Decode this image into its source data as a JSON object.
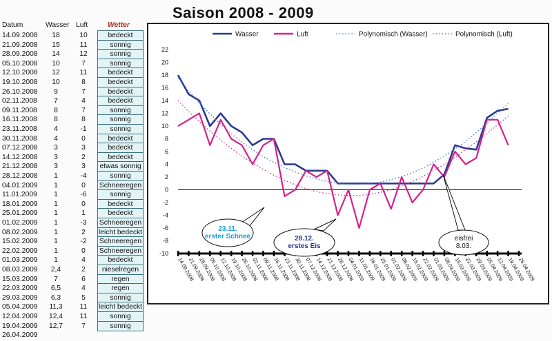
{
  "title": "Saison 2008  -  2009",
  "table": {
    "headers": {
      "date": "Datum",
      "water": "Wasser",
      "air": "Luft",
      "weather": "Wetter"
    },
    "rows": [
      {
        "date": "14.09.2008",
        "water": "18",
        "air": "10",
        "weather": "bedeckt"
      },
      {
        "date": "21.09.2008",
        "water": "15",
        "air": "11",
        "weather": "sonnig"
      },
      {
        "date": "28.09.2008",
        "water": "14",
        "air": "12",
        "weather": "sonnig"
      },
      {
        "date": "05.10.2008",
        "water": "10",
        "air": "7",
        "weather": "sonnig"
      },
      {
        "date": "12.10.2008",
        "water": "12",
        "air": "11",
        "weather": "bedeckt"
      },
      {
        "date": "19.10.2008",
        "water": "10",
        "air": "8",
        "weather": "bedeckt"
      },
      {
        "date": "26.10.2008",
        "water": "9",
        "air": "7",
        "weather": "bedeckt"
      },
      {
        "date": "02.11.2008",
        "water": "7",
        "air": "4",
        "weather": "bedeckt"
      },
      {
        "date": "09.11.2008",
        "water": "8",
        "air": "7",
        "weather": "sonnig"
      },
      {
        "date": "16.11.2008",
        "water": "8",
        "air": "8",
        "weather": "sonnig"
      },
      {
        "date": "23.11.2008",
        "water": "4",
        "air": "-1",
        "weather": "sonnig"
      },
      {
        "date": "30.11.2008",
        "water": "4",
        "air": "0",
        "weather": "bedeckt"
      },
      {
        "date": "07.12.2008",
        "water": "3",
        "air": "3",
        "weather": "bedeckt"
      },
      {
        "date": "14.12.2008",
        "water": "3",
        "air": "2",
        "weather": "bedeckt"
      },
      {
        "date": "21.12.2008",
        "water": "3",
        "air": "3",
        "weather": "etwas sonnig"
      },
      {
        "date": "28.12.2008",
        "water": "1",
        "air": "-4",
        "weather": "sonnig"
      },
      {
        "date": "04.01.2009",
        "water": "1",
        "air": "0",
        "weather": "Schneeregen"
      },
      {
        "date": "11.01.2009",
        "water": "1",
        "air": "-6",
        "weather": "sonnig"
      },
      {
        "date": "18.01.2009",
        "water": "1",
        "air": "0",
        "weather": "bedeckt"
      },
      {
        "date": "25.01.2009",
        "water": "1",
        "air": "1",
        "weather": "bedeckt"
      },
      {
        "date": "01.02.2009",
        "water": "1",
        "air": "-3",
        "weather": "Schneeregen"
      },
      {
        "date": "08.02.2009",
        "water": "1",
        "air": "2",
        "weather": "leicht bedeckt"
      },
      {
        "date": "15.02.2009",
        "water": "1",
        "air": "-2",
        "weather": "Schneeregen"
      },
      {
        "date": "22.02.2009",
        "water": "1",
        "air": "0",
        "weather": "Schneeregen"
      },
      {
        "date": "01.03.2009",
        "water": "1",
        "air": "4",
        "weather": "bedeckt"
      },
      {
        "date": "08.03.2009",
        "water": "2,4",
        "air": "2",
        "weather": "nieselregen"
      },
      {
        "date": "15.03.2009",
        "water": "7",
        "air": "6",
        "weather": "regen"
      },
      {
        "date": "22.03.2009",
        "water": "6,5",
        "air": "4",
        "weather": "regen"
      },
      {
        "date": "29.03.2009",
        "water": "6,3",
        "air": "5",
        "weather": "sonnig"
      },
      {
        "date": "05.04.2009",
        "water": "11,3",
        "air": "11",
        "weather": "leicht bedeckt"
      },
      {
        "date": "12.04.2009",
        "water": "12,4",
        "air": "11",
        "weather": "sonnig"
      },
      {
        "date": "19.04.2009",
        "water": "12,7",
        "air": "7",
        "weather": "sonnig"
      },
      {
        "date": "26.04.2009",
        "water": "",
        "air": "",
        "weather": ""
      }
    ]
  },
  "chart_data": {
    "type": "line",
    "title": "",
    "xlabel": "",
    "ylabel": "",
    "ylim": [
      -10,
      22
    ],
    "yticks": [
      -10,
      -8,
      -6,
      -4,
      -2,
      0,
      2,
      4,
      6,
      8,
      10,
      12,
      14,
      16,
      18,
      20,
      22
    ],
    "categories": [
      "14.09.2008",
      "21.09.2008",
      "28.09.2008",
      "05.10.2008",
      "12.10.2008",
      "19.10.2008",
      "26.10.2008",
      "02.11.2008",
      "09.11.2008",
      "16.11.2008",
      "23.11.2008",
      "30.11.2008",
      "07.12.2008",
      "14.12.2008",
      "21.12.2008",
      "28.12.2008",
      "04.01.2009",
      "11.01.2009",
      "18.01.2009",
      "25.01.2009",
      "01.02.2009",
      "08.02.2009",
      "15.02.2009",
      "22.02.2009",
      "01.03.2009",
      "08.03.2009",
      "15.03.2009",
      "22.03.2009",
      "29.03.2009",
      "05.04.2009",
      "12.04.2009",
      "19.04.2009",
      "26.04.2009"
    ],
    "series": [
      {
        "name": "Wasser",
        "color": "#2b3a8f",
        "style": "solid",
        "values": [
          18,
          15,
          14,
          10,
          12,
          10,
          9,
          7,
          8,
          8,
          4,
          4,
          3,
          3,
          3,
          1,
          1,
          1,
          1,
          1,
          1,
          1,
          1,
          1,
          1,
          2.4,
          7,
          6.5,
          6.3,
          11.3,
          12.4,
          12.7,
          null
        ]
      },
      {
        "name": "Luft",
        "color": "#d6208a",
        "style": "solid",
        "values": [
          10,
          11,
          12,
          7,
          11,
          8,
          7,
          4,
          7,
          8,
          -1,
          0,
          3,
          2,
          3,
          -4,
          0,
          -6,
          0,
          1,
          -3,
          2,
          -2,
          0,
          4,
          2,
          6,
          4,
          5,
          11,
          11,
          7,
          null
        ]
      },
      {
        "name": "Polynomisch (Wasser)",
        "color": "#3d6fd6",
        "style": "dotted",
        "values": [
          17.6,
          15.5,
          13.6,
          11.9,
          10.3,
          8.8,
          7.5,
          6.3,
          5.2,
          4.3,
          3.5,
          2.8,
          2.2,
          1.7,
          1.3,
          1.0,
          0.9,
          0.9,
          1.0,
          1.2,
          1.6,
          2.1,
          2.7,
          3.4,
          4.3,
          5.3,
          6.4,
          7.6,
          9.0,
          10.4,
          12.0,
          13.6,
          null
        ]
      },
      {
        "name": "Polynomisch (Luft)",
        "color": "#d6208a",
        "style": "dotted",
        "values": [
          14.0,
          12.3,
          10.7,
          9.2,
          7.8,
          6.5,
          5.3,
          4.2,
          3.2,
          2.3,
          1.5,
          0.8,
          0.2,
          -0.3,
          -0.6,
          -0.8,
          -0.9,
          -0.9,
          -0.7,
          -0.4,
          0.0,
          0.6,
          1.3,
          2.1,
          3.0,
          4.0,
          5.1,
          6.3,
          7.5,
          8.8,
          10.2,
          11.6,
          null
        ]
      }
    ],
    "legend": "top",
    "annotations": [
      {
        "lines": [
          "23.11.",
          "erster Schnee"
        ],
        "color": "#1a9ad6"
      },
      {
        "lines": [
          "28.12.",
          "erstes Eis"
        ],
        "color": "#2b3a8f"
      },
      {
        "lines": [
          "eisfrei",
          "8.03."
        ],
        "color": "#111111"
      }
    ]
  }
}
